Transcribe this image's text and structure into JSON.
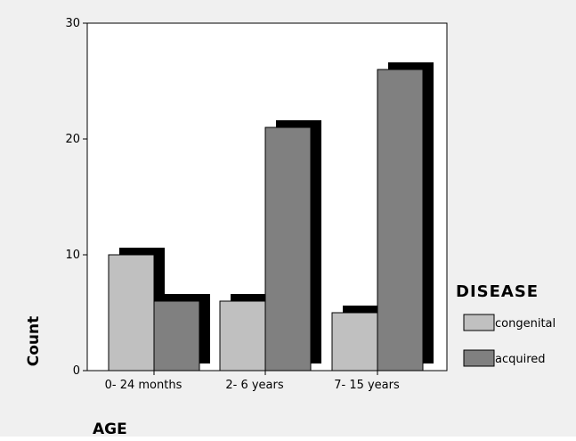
{
  "chart_data": {
    "type": "bar",
    "title": "",
    "xlabel": "AGE",
    "ylabel": "Count",
    "categories": [
      "0- 24 months",
      "2- 6 years",
      "7- 15 years"
    ],
    "series": [
      {
        "name": "congenital",
        "values": [
          10,
          6,
          5
        ],
        "color": "#c0c0c0"
      },
      {
        "name": "acquired",
        "values": [
          6,
          21,
          26
        ],
        "color": "#808080"
      }
    ],
    "ylim": [
      0,
      30
    ],
    "yticks": [
      0,
      10,
      20,
      30
    ],
    "grid": false,
    "legend": {
      "title": "DISEASE",
      "placement": "right"
    },
    "shadow_color": "#000000",
    "background_color": "#f0f0f0",
    "plot_background_color": "#ffffff"
  }
}
